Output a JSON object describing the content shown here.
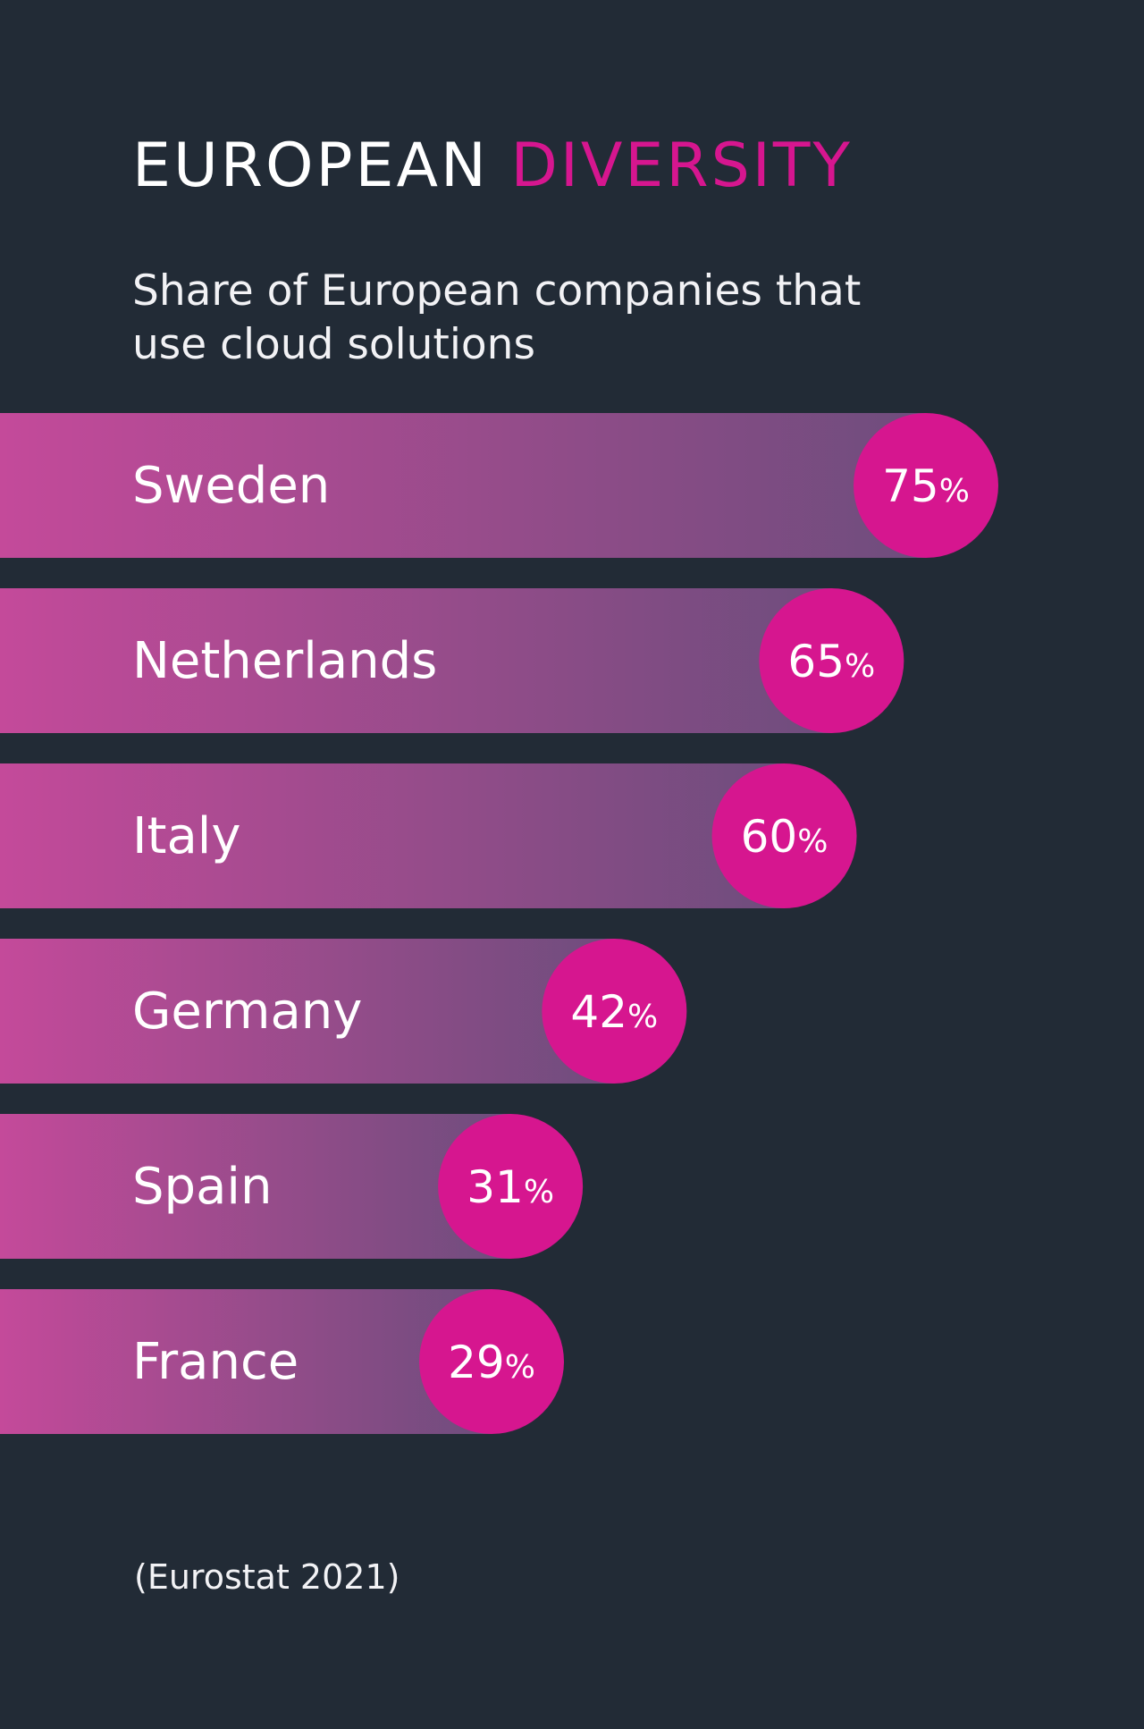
{
  "header": {
    "title_part1": "EUROPEAN",
    "title_part2": "DIVERSITY",
    "subtitle": "Share of European companies that use cloud solutions"
  },
  "colors": {
    "background": "#222b36",
    "accent": "#d6168f",
    "bar_start": "#c44a9a",
    "bar_end": "#6e4d7d"
  },
  "chart_data": {
    "type": "bar",
    "orientation": "horizontal",
    "title": "EUROPEAN DIVERSITY",
    "subtitle": "Share of European companies that use cloud solutions",
    "categories": [
      "Sweden",
      "Netherlands",
      "Italy",
      "Germany",
      "Spain",
      "France"
    ],
    "values": [
      75,
      65,
      60,
      42,
      31,
      29
    ],
    "value_suffix": "%",
    "data_labels": [
      "75",
      "65",
      "60",
      "42",
      "31",
      "29"
    ],
    "grid": false,
    "legend": "none"
  },
  "footer": {
    "source": "(Eurostat 2021)"
  }
}
